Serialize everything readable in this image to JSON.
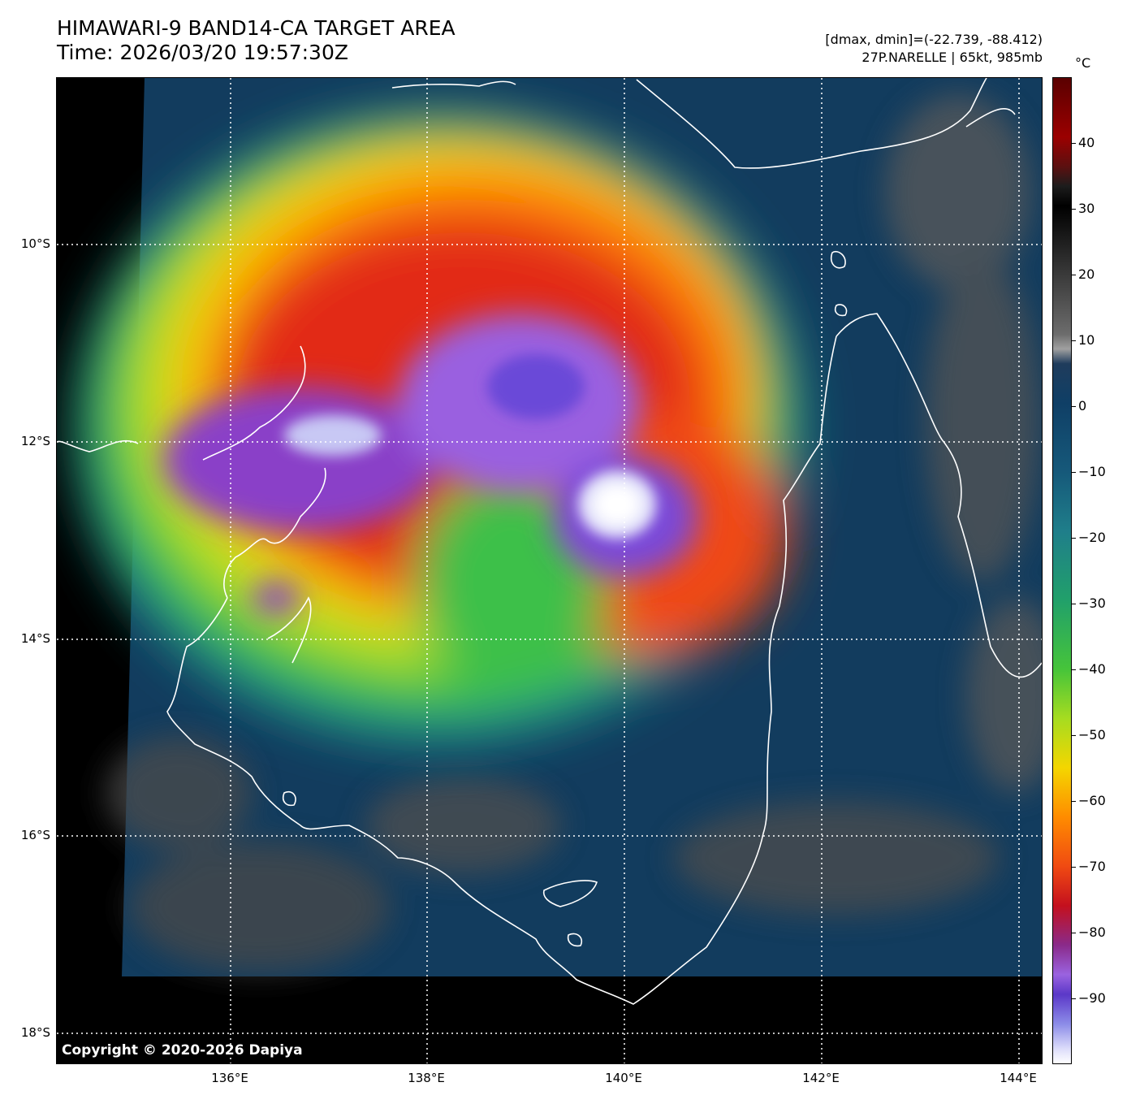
{
  "header": {
    "title_line1": "HIMAWARI-9 BAND14-CA TARGET AREA",
    "title_line2": "Time: 2026/03/20 19:57:30Z",
    "info_line1": "[dmax, dmin]=(-22.739, -88.412)",
    "info_line2": "27P.NARELLE | 65kt, 985mb"
  },
  "map": {
    "copyright": "Copyright © 2020-2026 Dapiya",
    "lat_labels": [
      "10°S",
      "12°S",
      "14°S",
      "16°S",
      "18°S"
    ],
    "lon_labels": [
      "136°E",
      "138°E",
      "140°E",
      "142°E",
      "144°E"
    ],
    "coastline_color": "#ffffff",
    "gridline_color": "#ffffff"
  },
  "colorbar": {
    "unit": "°C",
    "ticks": [
      "40",
      "30",
      "20",
      "10",
      "0",
      "−10",
      "−20",
      "−30",
      "−40",
      "−50",
      "−60",
      "−70",
      "−80",
      "−90"
    ],
    "range": [
      -100,
      50
    ]
  }
}
